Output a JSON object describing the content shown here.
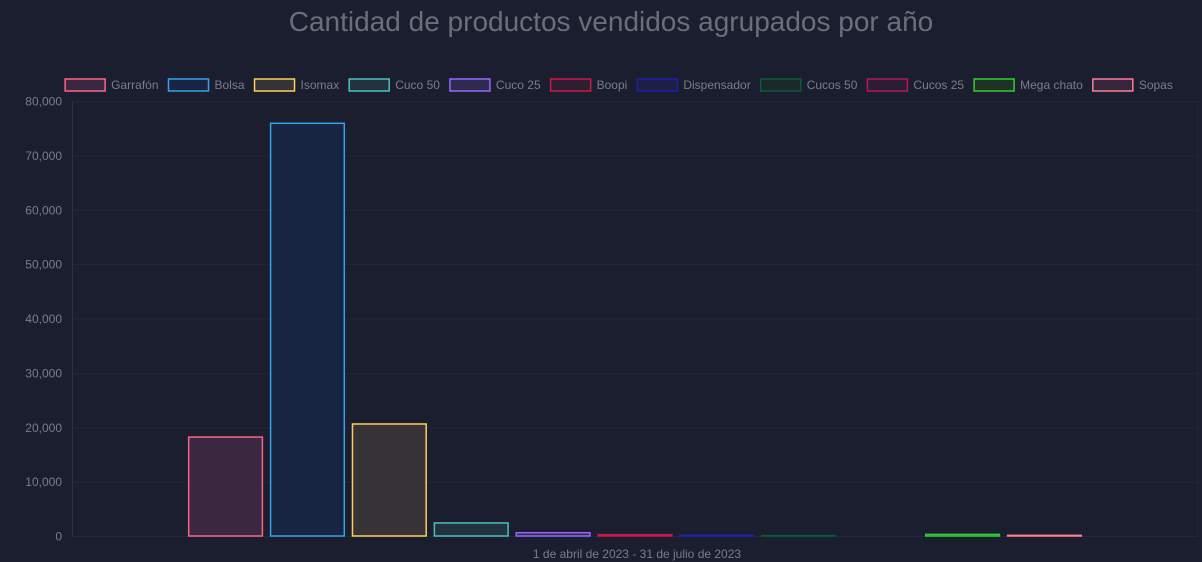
{
  "chart_data": {
    "type": "bar",
    "title": "Cantidad de productos vendidos agrupados por año",
    "categories": [
      "1 de abril de 2023 - 31 de julio de 2023"
    ],
    "ylim": [
      0,
      80000
    ],
    "yticks": [
      "0",
      "10,000",
      "20,000",
      "30,000",
      "40,000",
      "50,000",
      "60,000",
      "70,000",
      "80,000"
    ],
    "yticks_values": [
      0,
      10000,
      20000,
      30000,
      40000,
      50000,
      60000,
      70000,
      80000
    ],
    "grid": true,
    "legend_position": "top",
    "series": [
      {
        "name": "Garrafón",
        "values": [
          18200
        ],
        "border": "#ff6384",
        "fill": "#3a2740"
      },
      {
        "name": "Bolsa",
        "values": [
          75900
        ],
        "border": "#36a2eb",
        "fill": "#172541"
      },
      {
        "name": "Isomax",
        "values": [
          20600
        ],
        "border": "#ffce56",
        "fill": "#363436"
      },
      {
        "name": "Cuco 50",
        "values": [
          2400
        ],
        "border": "#4bc0c0",
        "fill": "#22323e"
      },
      {
        "name": "Cuco 25",
        "values": [
          600
        ],
        "border": "#9966ff",
        "fill": "#2e2a50"
      },
      {
        "name": "Boopi",
        "values": [
          250
        ],
        "border": "#c9184a",
        "fill": "#2e1e30"
      },
      {
        "name": "Dispensador",
        "values": [
          150
        ],
        "border": "#1f1fa8",
        "fill": "#1e1f45"
      },
      {
        "name": "Cucos 50",
        "values": [
          80
        ],
        "border": "#0a5c36",
        "fill": "#1a2a2a"
      },
      {
        "name": "Cucos 25",
        "values": [
          0
        ],
        "border": "#b5175e",
        "fill": "#2b1d36"
      },
      {
        "name": "Mega chato",
        "values": [
          300
        ],
        "border": "#32cd32",
        "fill": "#1f3325"
      },
      {
        "name": "Sopas",
        "values": [
          120
        ],
        "border": "#ff7f96",
        "fill": "#35263b"
      }
    ]
  }
}
